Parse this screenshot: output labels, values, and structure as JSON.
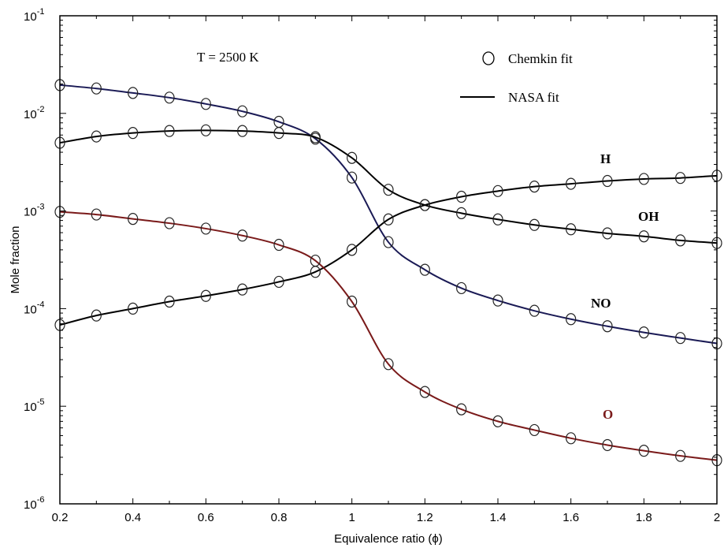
{
  "chart_data": {
    "type": "line",
    "xlabel": "Equivalence ratio (ϕ)",
    "ylabel": "Mole fraction",
    "xlim": [
      0.2,
      2.0
    ],
    "ylim": [
      1e-06,
      0.1
    ],
    "yscale": "log",
    "grid": false,
    "x_ticks": [
      "0.2",
      "0.4",
      "0.6",
      "0.8",
      "1",
      "1.2",
      "1.4",
      "1.6",
      "1.8",
      "2"
    ],
    "y_ticks": [
      {
        "base": "10",
        "exp": "-6",
        "value": 1e-06
      },
      {
        "base": "10",
        "exp": "-5",
        "value": 1e-05
      },
      {
        "base": "10",
        "exp": "-4",
        "value": 0.0001
      },
      {
        "base": "10",
        "exp": "-3",
        "value": 0.001
      },
      {
        "base": "10",
        "exp": "-2",
        "value": 0.01
      },
      {
        "base": "10",
        "exp": "-1",
        "value": 0.1
      }
    ],
    "annotation": "T = 2500 K",
    "legend": {
      "placement": "top-right",
      "marker_label": "Chemkin fit",
      "line_label": "NASA fit"
    },
    "x": [
      0.2,
      0.3,
      0.4,
      0.5,
      0.6,
      0.7,
      0.8,
      0.9,
      1.0,
      1.1,
      1.2,
      1.3,
      1.4,
      1.5,
      1.6,
      1.7,
      1.8,
      1.9,
      2.0
    ],
    "series": [
      {
        "name": "NO",
        "color": "#1a1a55",
        "values": [
          0.0195,
          0.018,
          0.0162,
          0.0145,
          0.0125,
          0.0105,
          0.0082,
          0.0055,
          0.0022,
          0.00048,
          0.00025,
          0.000162,
          0.000121,
          9.5e-05,
          7.8e-05,
          6.6e-05,
          5.7e-05,
          5e-05,
          4.4e-05
        ]
      },
      {
        "name": "OH",
        "color": "#000000",
        "values": [
          0.005,
          0.0058,
          0.0063,
          0.0066,
          0.0067,
          0.0066,
          0.0063,
          0.0057,
          0.0035,
          0.00165,
          0.00115,
          0.00095,
          0.00082,
          0.00072,
          0.00065,
          0.00059,
          0.00055,
          0.0005,
          0.00047
        ]
      },
      {
        "name": "H",
        "color": "#000000",
        "values": [
          6.8e-05,
          8.5e-05,
          0.0001,
          0.000118,
          0.000135,
          0.000157,
          0.000188,
          0.000238,
          0.0004,
          0.00082,
          0.00115,
          0.0014,
          0.0016,
          0.00178,
          0.0019,
          0.00203,
          0.00213,
          0.00218,
          0.0023
        ]
      },
      {
        "name": "O",
        "color": "#7a1a1a",
        "values": [
          0.00098,
          0.00092,
          0.00083,
          0.00075,
          0.00066,
          0.00056,
          0.00045,
          0.00031,
          0.000118,
          2.7e-05,
          1.4e-05,
          9.3e-06,
          7e-06,
          5.7e-06,
          4.7e-06,
          4e-06,
          3.5e-06,
          3.1e-06,
          2.8e-06
        ]
      }
    ],
    "series_labels": [
      "H",
      "OH",
      "NO",
      "O"
    ]
  }
}
